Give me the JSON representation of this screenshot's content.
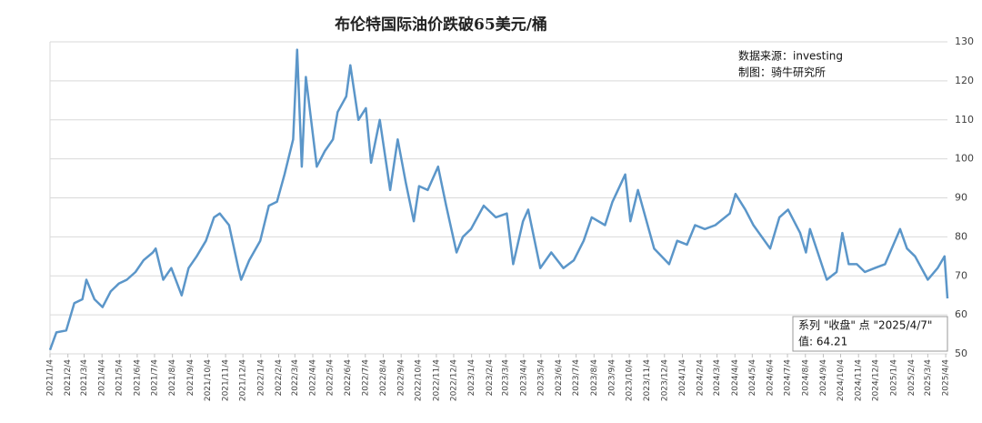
{
  "chart_data": {
    "type": "line",
    "title": "布伦特国际油价跌破65美元/桶",
    "annotations": [
      "数据来源：investing",
      "制图：骑牛研究所"
    ],
    "tooltip": [
      "系列 \"收盘\" 点 \"2025/4/7\"",
      "值: 64.21"
    ],
    "xlim": [
      "2021/1/4",
      "2025/4/7"
    ],
    "ylim": [
      50,
      130
    ],
    "yticks": [
      50,
      60,
      70,
      80,
      90,
      100,
      110,
      120,
      130
    ],
    "grid": true,
    "xticks": [
      "2021/1/4",
      "2021/2/4",
      "2021/3/4",
      "2021/4/4",
      "2021/5/4",
      "2021/6/4",
      "2021/7/4",
      "2021/8/4",
      "2021/9/4",
      "2021/10/4",
      "2021/11/4",
      "2021/12/4",
      "2022/1/4",
      "2022/2/4",
      "2022/3/4",
      "2022/4/4",
      "2022/5/4",
      "2022/6/4",
      "2022/7/4",
      "2022/8/4",
      "2022/9/4",
      "2022/10/4",
      "2022/11/4",
      "2022/12/4",
      "2023/1/4",
      "2023/2/4",
      "2023/3/4",
      "2023/4/4",
      "2023/5/4",
      "2023/6/4",
      "2023/7/4",
      "2023/8/4",
      "2023/9/4",
      "2023/10/4",
      "2023/11/4",
      "2023/12/4",
      "2024/1/4",
      "2024/2/4",
      "2024/3/4",
      "2024/4/4",
      "2024/5/4",
      "2024/6/4",
      "2024/7/4",
      "2024/8/4",
      "2024/9/4",
      "2024/10/4",
      "2024/11/4",
      "2024/12/4",
      "2025/1/4",
      "2025/2/4",
      "2025/3/4",
      "2025/4/4"
    ],
    "series": [
      {
        "name": "收盘",
        "color": "#5b96c9",
        "x": [
          "2021/1/4",
          "2021/1/15",
          "2021/2/1",
          "2021/2/15",
          "2021/3/1",
          "2021/3/8",
          "2021/3/22",
          "2021/4/5",
          "2021/4/19",
          "2021/5/3",
          "2021/5/17",
          "2021/6/1",
          "2021/6/15",
          "2021/7/1",
          "2021/7/6",
          "2021/7/19",
          "2021/8/2",
          "2021/8/20",
          "2021/9/1",
          "2021/9/15",
          "2021/10/1",
          "2021/10/15",
          "2021/10/25",
          "2021/11/10",
          "2021/11/26",
          "2021/12/1",
          "2021/12/15",
          "2022/1/3",
          "2022/1/18",
          "2022/2/1",
          "2022/2/14",
          "2022/3/1",
          "2022/3/8",
          "2022/3/16",
          "2022/3/23",
          "2022/4/11",
          "2022/4/25",
          "2022/5/9",
          "2022/5/17",
          "2022/6/1",
          "2022/6/8",
          "2022/6/22",
          "2022/7/5",
          "2022/7/14",
          "2022/7/29",
          "2022/8/16",
          "2022/8/29",
          "2022/9/12",
          "2022/9/26",
          "2022/10/5",
          "2022/10/20",
          "2022/11/7",
          "2022/11/21",
          "2022/12/9",
          "2022/12/20",
          "2023/1/3",
          "2023/1/25",
          "2023/2/15",
          "2023/3/6",
          "2023/3/17",
          "2023/4/3",
          "2023/4/12",
          "2023/5/3",
          "2023/5/22",
          "2023/6/12",
          "2023/6/30",
          "2023/7/17",
          "2023/7/31",
          "2023/8/23",
          "2023/9/5",
          "2023/9/27",
          "2023/10/6",
          "2023/10/19",
          "2023/11/16",
          "2023/12/12",
          "2023/12/26",
          "2024/1/12",
          "2024/1/26",
          "2024/2/12",
          "2024/3/1",
          "2024/3/26",
          "2024/4/5",
          "2024/4/22",
          "2024/5/6",
          "2024/6/4",
          "2024/6/20",
          "2024/7/5",
          "2024/7/26",
          "2024/8/5",
          "2024/8/12",
          "2024/9/10",
          "2024/9/27",
          "2024/10/7",
          "2024/10/18",
          "2024/11/1",
          "2024/11/15",
          "2024/12/2",
          "2024/12/20",
          "2025/1/15",
          "2025/1/27",
          "2025/2/10",
          "2025/3/4",
          "2025/3/21",
          "2025/4/2",
          "2025/4/7"
        ],
        "values": [
          51,
          55.5,
          56,
          63,
          64,
          69,
          64,
          62,
          66,
          68,
          69,
          71,
          74,
          76,
          77,
          69,
          72,
          65,
          72,
          75,
          79,
          85,
          86,
          83,
          72,
          69,
          74,
          79,
          88,
          89,
          96,
          105,
          128,
          98,
          121,
          98,
          102,
          105,
          112,
          116,
          124,
          110,
          113,
          99,
          110,
          92,
          105,
          94,
          84,
          93,
          92,
          98,
          88,
          76,
          80,
          82,
          88,
          85,
          86,
          73,
          84,
          87,
          72,
          76,
          72,
          74,
          79,
          85,
          83,
          89,
          96,
          84,
          92,
          77,
          73,
          79,
          78,
          83,
          82,
          83,
          86,
          91,
          87,
          83,
          77,
          85,
          87,
          81,
          76,
          82,
          69,
          71,
          81,
          73,
          73,
          71,
          72,
          73,
          82,
          77,
          75,
          69,
          72,
          75,
          64.21
        ]
      }
    ]
  }
}
